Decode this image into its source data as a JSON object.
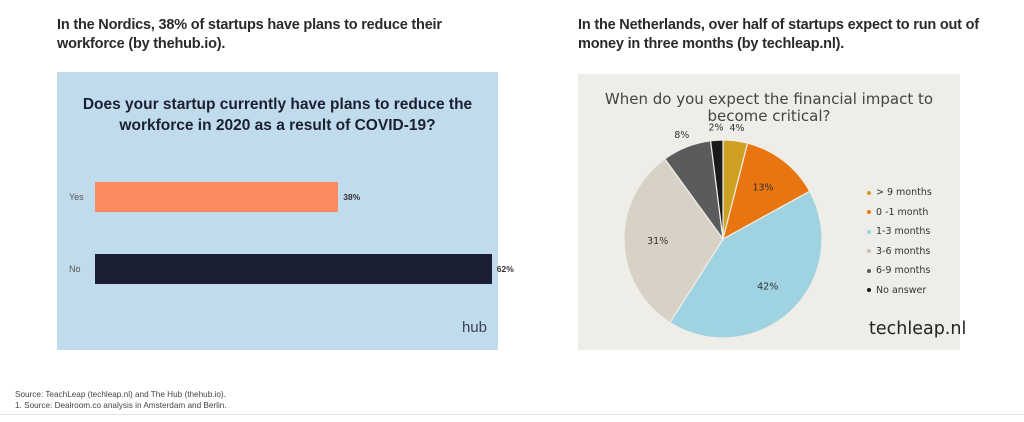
{
  "left_heading": "In the Nordics, 38% of startups have plans to reduce their workforce (by thehub.io).",
  "right_heading": "In the Netherlands, over half of startups expect to run out of money in three months (by techleap.nl).",
  "chart_data": [
    {
      "type": "bar",
      "orientation": "horizontal",
      "title": "Does your startup currently have plans to reduce the workforce in 2020 as a result of COVID-19?",
      "categories": [
        "Yes",
        "No"
      ],
      "values": [
        38,
        62
      ],
      "value_labels": [
        "38%",
        "62%"
      ],
      "colors": [
        "#fb8b5f",
        "#1b1f33"
      ],
      "background": "#c0dcec",
      "logo": "hub"
    },
    {
      "type": "pie",
      "title": "When do you expect the financial impact to become critical?",
      "labels": [
        "> 9 months",
        "0 -1 month",
        "1-3 months",
        "3-6 months",
        "6-9 months",
        "No answer"
      ],
      "values": [
        4,
        13,
        42,
        31,
        8,
        2
      ],
      "value_labels": [
        "4%",
        "13%",
        "42%",
        "31%",
        "8%",
        "2%"
      ],
      "colors": [
        "#cfa123",
        "#e97510",
        "#9fd3e2",
        "#d8d2c6",
        "#595c5a",
        "#1a1a1a"
      ],
      "legend_position": "right",
      "background": "#efede8",
      "logo": "techleap.nl"
    }
  ],
  "footnotes": [
    "Source: TeachLeap (techleap.nl) and The Hub (thehub.io).",
    "1. Source: Dealroom.co analysis in Amsterdam and Berlin."
  ]
}
